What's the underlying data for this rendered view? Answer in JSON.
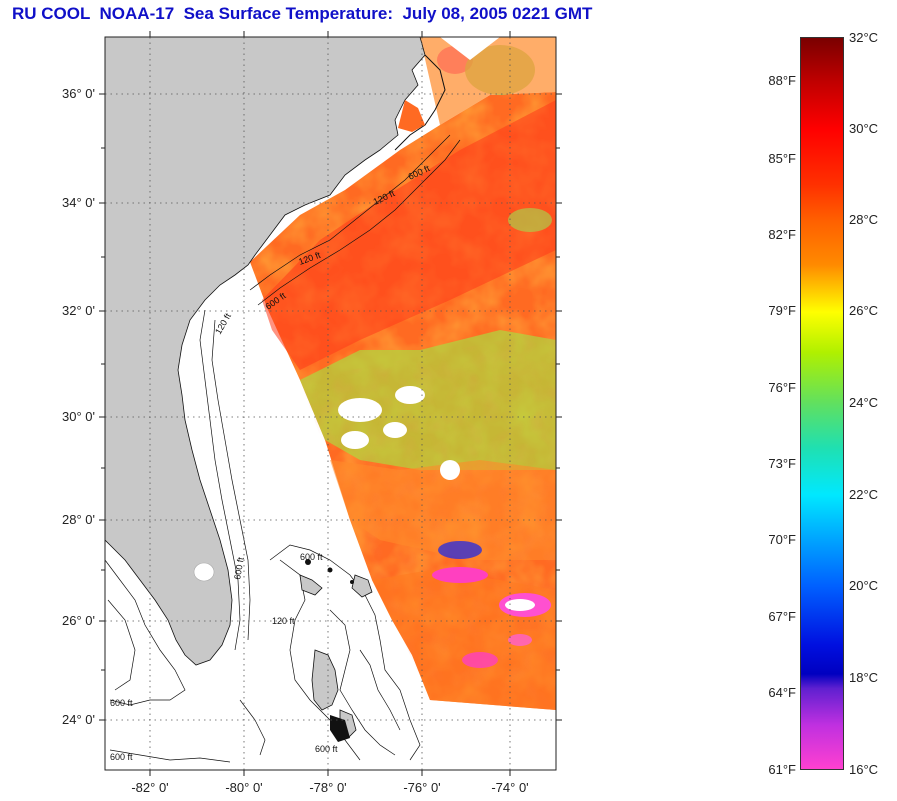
{
  "title": "RU COOL  NOAA-17  Sea Surface Temperature:  July 08, 2005 0221 GMT",
  "latitude_labels": [
    "36° 0'",
    "34° 0'",
    "32° 0'",
    "30° 0'",
    "28° 0'",
    "26° 0'",
    "24° 0'"
  ],
  "longitude_labels": [
    "-82° 0'",
    "-80° 0'",
    "-78° 0'",
    "-76° 0'",
    "-74° 0'"
  ],
  "colorbar": {
    "celsius_labels": [
      "32°C",
      "30°C",
      "28°C",
      "26°C",
      "24°C",
      "22°C",
      "20°C",
      "18°C",
      "16°C"
    ],
    "fahrenheit_labels": [
      "88°F",
      "85°F",
      "82°F",
      "79°F",
      "76°F",
      "73°F",
      "70°F",
      "67°F",
      "64°F",
      "61°F"
    ]
  },
  "bathymetry_labels": [
    "120 ft",
    "600 ft",
    "120 ft",
    "600 ft",
    "120 ft",
    "600 ft",
    "600 ft",
    "120 ft",
    "600 ft",
    "600 ft",
    "600 ft"
  ],
  "colors": {
    "title": "#1010c8",
    "land": "#c8c8c8",
    "sst_warm": "#ff5a1e",
    "sst_cool": "#7cd05a",
    "cloud_mask": "#ffffff"
  }
}
